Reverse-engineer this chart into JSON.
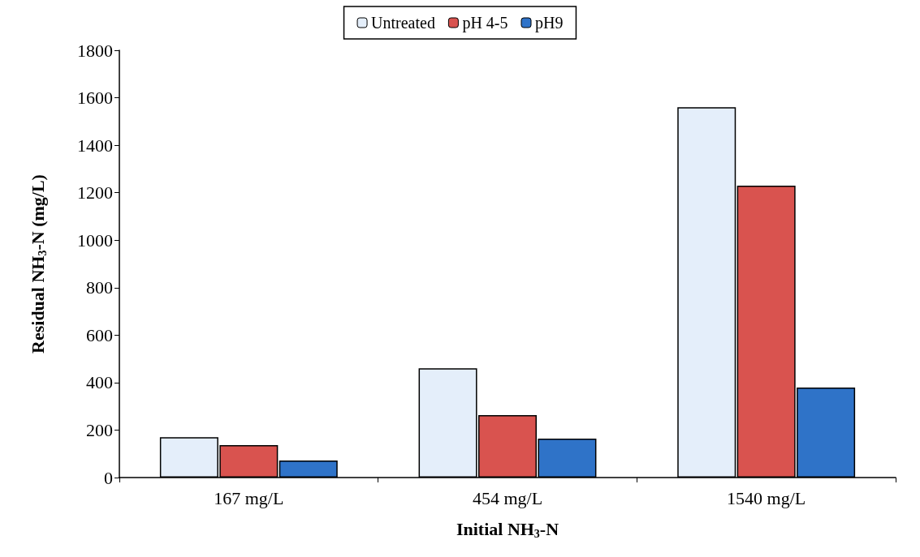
{
  "chart_data": {
    "type": "bar",
    "xlabel": "Initial NH$_{3}$-N",
    "ylabel": "Residual NH$_{3}$-N (mg/L)",
    "categories": [
      "167 mg/L",
      "454 mg/L",
      "1540 mg/L"
    ],
    "series": [
      {
        "name": "Untreated",
        "color": "#e4eefa",
        "values": [
          170,
          460,
          1560
        ]
      },
      {
        "name": "pH 4-5",
        "color": "#d9534f",
        "values": [
          137,
          263,
          1230
        ]
      },
      {
        "name": "pH9",
        "color": "#2f73c8",
        "values": [
          72,
          164,
          379
        ]
      }
    ],
    "ylim": [
      0,
      1800
    ],
    "yticks": [
      0,
      200,
      400,
      600,
      800,
      1000,
      1200,
      1400,
      1600,
      1800
    ],
    "grid": false,
    "legend": "top"
  }
}
